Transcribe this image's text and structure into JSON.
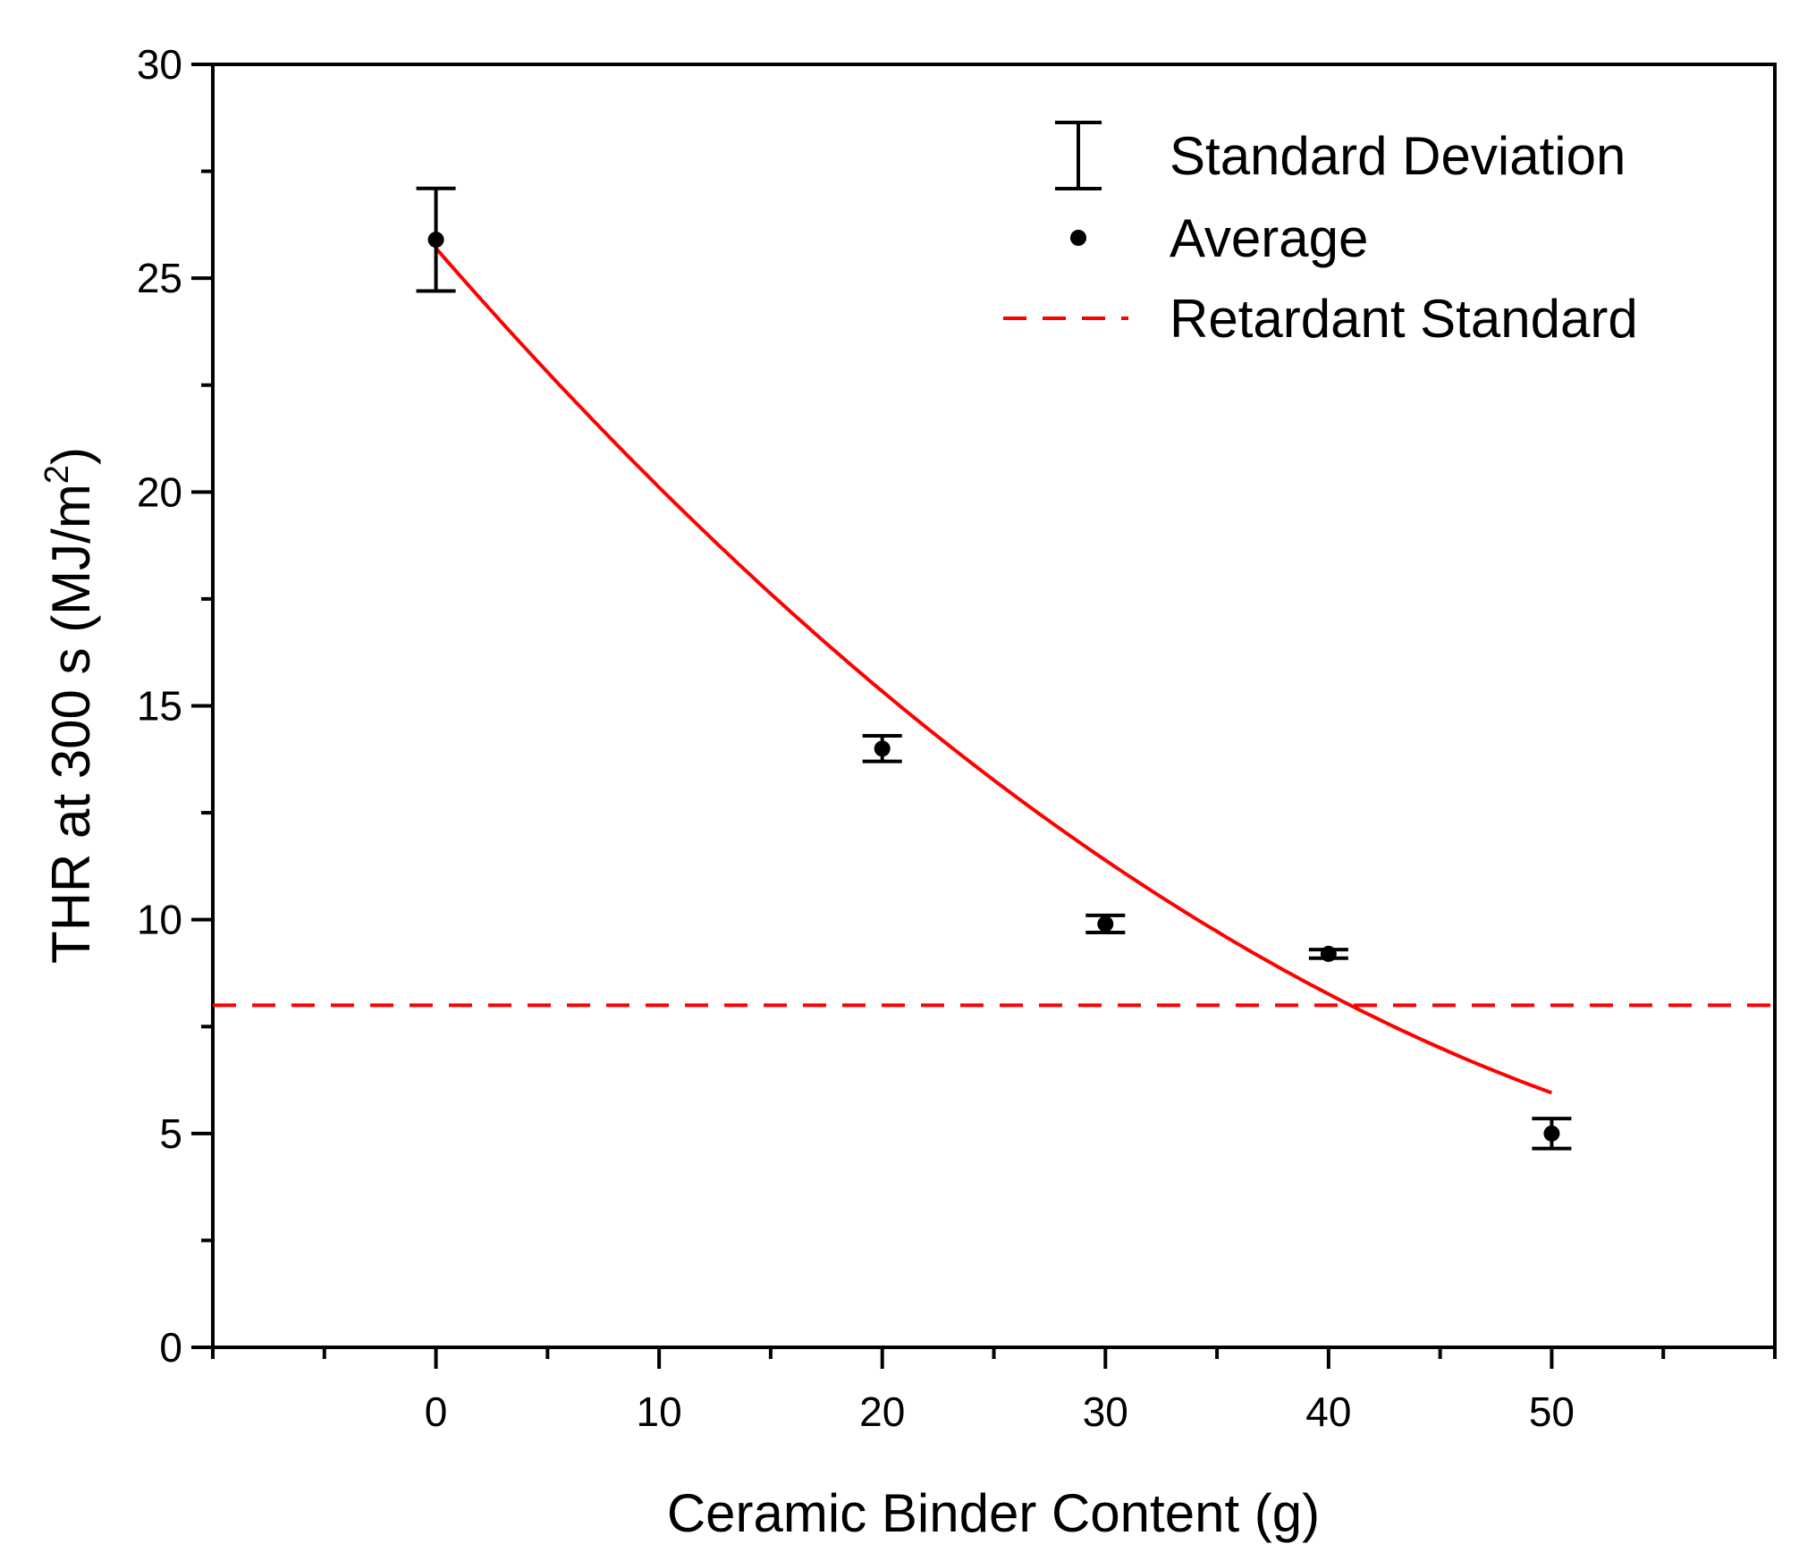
{
  "chart_data": {
    "type": "scatter",
    "title": "",
    "xlabel": "Ceramic Binder Content (g)",
    "ylabel": "THR at 300 s (MJ/m",
    "ylabel_superscript": "2",
    "ylabel_suffix": ")",
    "xlim": [
      -10,
      60
    ],
    "ylim": [
      0,
      30
    ],
    "x_ticks": [
      0,
      10,
      20,
      30,
      40,
      50
    ],
    "x_minor_ticks": [
      -10,
      -5,
      5,
      15,
      25,
      35,
      45,
      55,
      60
    ],
    "y_ticks": [
      0,
      5,
      10,
      15,
      20,
      25,
      30
    ],
    "y_minor_ticks": [
      2.5,
      7.5,
      12.5,
      17.5,
      22.5,
      27.5
    ],
    "grid": false,
    "legend_position": "top-right",
    "series": [
      {
        "name": "Average",
        "x": [
          0,
          20,
          30,
          40,
          50
        ],
        "y": [
          25.9,
          14.0,
          9.9,
          9.2,
          5.0
        ],
        "error": [
          1.2,
          0.3,
          0.2,
          0.1,
          0.35
        ]
      }
    ],
    "fit": {
      "name": "Fit",
      "color": "#ff0000",
      "x_range": [
        0,
        50
      ],
      "coefficients": [
        25.7,
        -0.6,
        0.0041
      ]
    },
    "reference_line": {
      "name": "Retardant Standard",
      "y": 8,
      "color": "#ff0000",
      "style": "dashed"
    },
    "legend": [
      {
        "symbol": "errorbar",
        "label": "Standard Deviation"
      },
      {
        "symbol": "dot",
        "label": "Average"
      },
      {
        "symbol": "dashed-line",
        "label": "Retardant Standard"
      }
    ]
  }
}
